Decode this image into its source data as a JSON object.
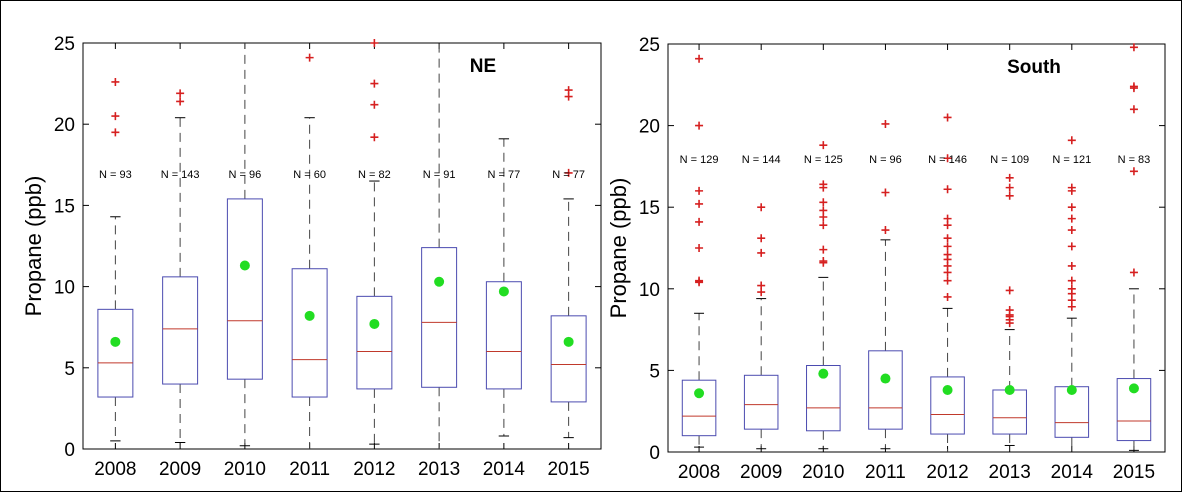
{
  "chart_data": [
    {
      "type": "box",
      "title": "NE",
      "ylabel": "Propane (ppb)",
      "ylim": [
        0,
        25
      ],
      "yticks": [
        "0",
        "5",
        "10",
        "15",
        "20",
        "25"
      ],
      "categories": [
        "2008",
        "2009",
        "2010",
        "2011",
        "2012",
        "2013",
        "2014",
        "2015"
      ],
      "n_labels": [
        "N = 93",
        "N = 143",
        "N = 96",
        "N = 60",
        "N = 82",
        "N = 91",
        "N = 77",
        "N = 77"
      ],
      "boxes": [
        {
          "wlow": 0.5,
          "q1": 3.2,
          "median": 5.3,
          "q3": 8.6,
          "whigh": 14.3,
          "mean": 6.6,
          "outliers": [
            19.5,
            20.5,
            22.6
          ]
        },
        {
          "wlow": 0.4,
          "q1": 4.0,
          "median": 7.4,
          "q3": 10.6,
          "whigh": 20.4,
          "mean": null,
          "outliers": [
            21.4,
            21.9
          ]
        },
        {
          "wlow": 0.2,
          "q1": 4.3,
          "median": 7.9,
          "q3": 15.4,
          "whigh": 25.0,
          "mean": 11.3,
          "outliers": []
        },
        {
          "wlow": 0.0,
          "q1": 3.2,
          "median": 5.5,
          "q3": 11.1,
          "whigh": 20.4,
          "mean": 8.2,
          "outliers": [
            24.1
          ]
        },
        {
          "wlow": 0.3,
          "q1": 3.7,
          "median": 6.0,
          "q3": 9.4,
          "whigh": 16.5,
          "mean": 7.7,
          "outliers": [
            19.2,
            21.2,
            22.5,
            25.0
          ]
        },
        {
          "wlow": 0.0,
          "q1": 3.8,
          "median": 7.8,
          "q3": 12.4,
          "whigh": 25.0,
          "mean": 10.3,
          "outliers": []
        },
        {
          "wlow": 0.8,
          "q1": 3.7,
          "median": 6.0,
          "q3": 10.3,
          "whigh": 19.1,
          "mean": 9.7,
          "outliers": []
        },
        {
          "wlow": 0.7,
          "q1": 2.9,
          "median": 5.2,
          "q3": 8.2,
          "whigh": 15.4,
          "mean": 6.6,
          "outliers": [
            17.0,
            21.7,
            22.1
          ]
        }
      ],
      "colors": {
        "box": "#4b4bb0",
        "median": "#c0392b",
        "whisker": "#444444",
        "outlier": "#d62020",
        "mean": "#22dd22"
      }
    },
    {
      "type": "box",
      "title": "South",
      "ylabel": "Propane (ppb)",
      "ylim": [
        0,
        25
      ],
      "yticks": [
        "0",
        "5",
        "10",
        "15",
        "20",
        "25"
      ],
      "categories": [
        "2008",
        "2009",
        "2010",
        "2011",
        "2012",
        "2013",
        "2014",
        "2015"
      ],
      "n_labels": [
        "N = 129",
        "N = 144",
        "N = 125",
        "N = 96",
        "N = 146",
        "N = 109",
        "N = 121",
        "N = 83"
      ],
      "boxes": [
        {
          "wlow": 0.3,
          "q1": 1.0,
          "median": 2.2,
          "q3": 4.4,
          "whigh": 8.5,
          "mean": 3.6,
          "outliers": [
            10.4,
            10.5,
            12.5,
            14.1,
            15.2,
            16.0,
            20.0,
            24.1
          ]
        },
        {
          "wlow": 0.2,
          "q1": 1.4,
          "median": 2.9,
          "q3": 4.7,
          "whigh": 9.4,
          "mean": null,
          "outliers": [
            9.8,
            10.2,
            12.2,
            13.1,
            15.0
          ]
        },
        {
          "wlow": 0.2,
          "q1": 1.3,
          "median": 2.7,
          "q3": 5.3,
          "whigh": 10.7,
          "mean": 4.8,
          "outliers": [
            11.6,
            11.7,
            12.4,
            13.9,
            14.4,
            14.8,
            15.3,
            16.2,
            16.4,
            18.8
          ]
        },
        {
          "wlow": 0.2,
          "q1": 1.4,
          "median": 2.7,
          "q3": 6.2,
          "whigh": 13.0,
          "mean": 4.5,
          "outliers": [
            13.6,
            15.9,
            20.1
          ]
        },
        {
          "wlow": 0.0,
          "q1": 1.1,
          "median": 2.3,
          "q3": 4.6,
          "whigh": 8.8,
          "mean": 3.8,
          "outliers": [
            9.5,
            10.5,
            11.0,
            11.4,
            11.8,
            12.1,
            12.6,
            13.1,
            13.9,
            14.3,
            16.1,
            18.0,
            20.5
          ]
        },
        {
          "wlow": 0.4,
          "q1": 1.1,
          "median": 2.1,
          "q3": 3.8,
          "whigh": 7.5,
          "mean": 3.8,
          "outliers": [
            7.9,
            8.1,
            8.3,
            8.4,
            8.7,
            9.9,
            15.7,
            16.2,
            16.8
          ]
        },
        {
          "wlow": 0.0,
          "q1": 0.9,
          "median": 1.8,
          "q3": 4.0,
          "whigh": 8.2,
          "mean": 3.8,
          "outliers": [
            8.9,
            9.3,
            9.7,
            10.0,
            10.5,
            11.4,
            12.6,
            13.6,
            14.3,
            15.0,
            16.0,
            16.2,
            19.1
          ]
        },
        {
          "wlow": 0.1,
          "q1": 0.7,
          "median": 1.9,
          "q3": 4.5,
          "whigh": 10.0,
          "mean": 3.9,
          "outliers": [
            11.0,
            17.2,
            21.0,
            22.3,
            22.4,
            24.8
          ]
        }
      ],
      "colors": {
        "box": "#4b4bb0",
        "median": "#c0392b",
        "whisker": "#444444",
        "outlier": "#d62020",
        "mean": "#22dd22"
      }
    }
  ]
}
